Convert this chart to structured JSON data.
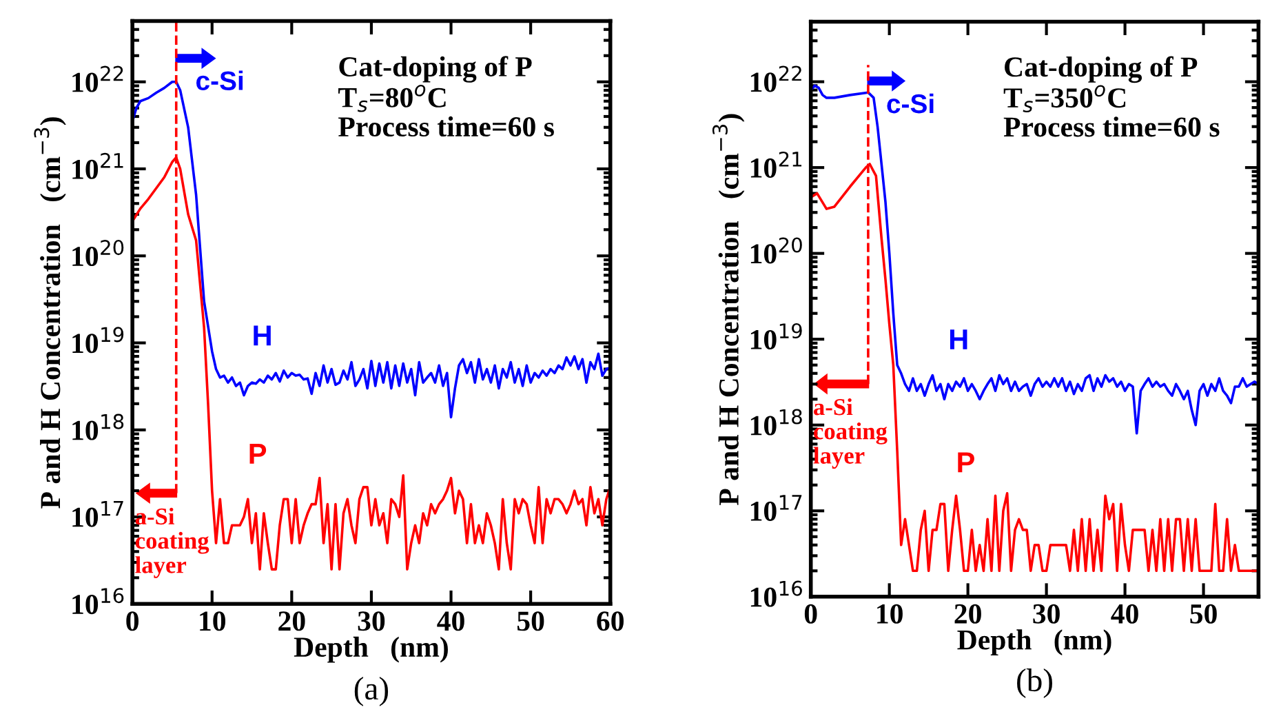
{
  "chart_data": [
    {
      "type": "line",
      "xlabel": "Depth   (nm)",
      "ylabel": "P and H Concentration   (cm$^{−3}$)",
      "log": "y",
      "grid": false,
      "legend": false,
      "marker": "none",
      "line_style": "solid",
      "xlim": [
        0,
        60
      ],
      "xticks": [
        0,
        10,
        20,
        30,
        40,
        50,
        60
      ],
      "ylim": [
        1e+16,
        5e+22
      ],
      "yticks": [
        {
          "value": 1e+16,
          "label": "10$^{16}$"
        },
        {
          "value": 1e+17,
          "label": "10$^{17}$"
        },
        {
          "value": 1e+18,
          "label": "10$^{18}$"
        },
        {
          "value": 1e+19,
          "label": "10$^{19}$"
        },
        {
          "value": 1e+20,
          "label": "10$^{20}$"
        },
        {
          "value": 1e+21,
          "label": "10$^{21}$"
        },
        {
          "value": 1e+22,
          "label": "10$^{22}$"
        }
      ],
      "ref_lines": [
        {
          "axis": "x",
          "value": 5.5,
          "color": "#ff0000",
          "line_style": "dashed"
        }
      ],
      "annotations": [
        "Cat-doping of P\nT$_{s}$=80$^{o}$C\nProcess time=60 s",
        "c-Si",
        "a-Si\ncoating\nlayer",
        "(a)"
      ],
      "series": [
        {
          "name": "H",
          "color": "#0000ff",
          "x": [
            0,
            0.5,
            1,
            2,
            3,
            4,
            5,
            5.5,
            6,
            7,
            8,
            9,
            10,
            10.5,
            11,
            11.5,
            12,
            12.5,
            13,
            13.5,
            14,
            14.5,
            15,
            15.5,
            16,
            16.5,
            17,
            17.5,
            18,
            18.5,
            19,
            19.5,
            20,
            20.5,
            21,
            21.5,
            22,
            22.5,
            23,
            23.5,
            24,
            24.5,
            25,
            25.5,
            26,
            26.5,
            27,
            27.5,
            28,
            28.5,
            29,
            29.5,
            30,
            30.5,
            31,
            31.5,
            32,
            32.5,
            33,
            33.5,
            34,
            34.5,
            35,
            35.5,
            36,
            36.5,
            37,
            37.5,
            38,
            38.5,
            39,
            39.5,
            40,
            40.5,
            41,
            41.5,
            42,
            42.5,
            43,
            43.5,
            44,
            44.5,
            45,
            45.5,
            46,
            46.5,
            47,
            47.5,
            48,
            48.5,
            49,
            49.5,
            50,
            50.5,
            51,
            51.5,
            52,
            52.5,
            53,
            53.5,
            54,
            54.5,
            55,
            55.5,
            56,
            56.5,
            57,
            57.5,
            58,
            58.5,
            59,
            59.5,
            60
          ],
          "values": [
            3.5e+21,
            5e+21,
            6e+21,
            6.5e+21,
            7.5e+21,
            8.5e+21,
            1e+22,
            1e+22,
            8e+21,
            3e+21,
            5e+20,
            3e+19,
            8e+18,
            5e+18,
            4e+18,
            4.2e+18,
            3.5e+18,
            4e+18,
            3.2e+18,
            3.5e+18,
            2.5e+18,
            3.2e+18,
            3.5e+18,
            3.4e+18,
            3.8e+18,
            3.5e+18,
            4.2e+18,
            3.8e+18,
            4.5e+18,
            3.6e+18,
            4.8e+18,
            4e+18,
            4.5e+18,
            4.2e+18,
            4.3e+18,
            3.8e+18,
            3.9e+18,
            2.6e+18,
            4.5e+18,
            3.2e+18,
            5.5e+18,
            3.5e+18,
            5e+18,
            3.3e+18,
            3.5e+18,
            4.8e+18,
            3.8e+18,
            6e+18,
            3.2e+18,
            3.8e+18,
            5e+18,
            3e+18,
            6.2e+18,
            3.2e+18,
            5.8e+18,
            3.5e+18,
            6e+18,
            3e+18,
            5.5e+18,
            3.2e+18,
            5.8e+18,
            3.5e+18,
            5e+18,
            2.5e+18,
            6e+18,
            3.5e+18,
            4e+18,
            4.5e+18,
            3.5e+18,
            5.5e+18,
            3.2e+18,
            4.5e+18,
            1.4e+18,
            3e+18,
            5.5e+18,
            6.5e+18,
            4.5e+18,
            6e+18,
            3.5e+18,
            6.5e+18,
            3.8e+18,
            5e+18,
            3.5e+18,
            5.5e+18,
            3e+18,
            5e+18,
            4e+18,
            6e+18,
            3.5e+18,
            5e+18,
            3.2e+18,
            5.5e+18,
            3.5e+18,
            4.5e+18,
            4e+18,
            4.8e+18,
            4.2e+18,
            5e+18,
            4.5e+18,
            5.5e+18,
            5e+18,
            6.8e+18,
            5.5e+18,
            7e+18,
            5e+18,
            6.5e+18,
            3.5e+18,
            6e+18,
            5e+18,
            7.5e+18,
            4.2e+18,
            5e+18,
            5.2e+18
          ]
        },
        {
          "name": "P",
          "color": "#ff0000",
          "x": [
            0,
            1,
            2,
            3,
            4,
            5,
            5.5,
            6,
            7,
            8,
            9,
            9.5,
            10,
            10.5,
            11,
            11.5,
            12,
            12.5,
            13,
            13.5,
            14,
            14.5,
            15,
            15.5,
            16,
            16.5,
            17,
            17.5,
            18,
            18.5,
            19,
            19.5,
            20,
            20.5,
            21,
            21.5,
            22,
            22.5,
            23,
            23.5,
            24,
            24.5,
            25,
            25.5,
            26,
            26.5,
            27,
            27.5,
            28,
            28.5,
            29,
            29.5,
            30,
            30.5,
            31,
            31.5,
            32,
            32.5,
            33,
            33.5,
            34,
            34.5,
            35,
            35.5,
            36,
            36.5,
            37,
            37.5,
            38,
            38.5,
            39,
            39.5,
            40,
            40.5,
            41,
            41.5,
            42,
            42.5,
            43,
            43.5,
            44,
            44.5,
            45,
            45.5,
            46,
            46.5,
            47,
            47.5,
            48,
            48.5,
            49,
            49.5,
            50,
            50.5,
            51,
            51.5,
            52,
            52.5,
            53,
            53.5,
            54,
            54.5,
            55,
            55.5,
            56,
            56.5,
            57,
            57.5,
            58,
            58.5,
            59,
            59.5,
            60
          ],
          "values": [
            2.5e+20,
            3.5e+20,
            4.5e+20,
            6e+20,
            8e+20,
            1.2e+21,
            1.35e+21,
            1e+21,
            3e+20,
            1.5e+20,
            1.5e+19,
            2e+18,
            2e+17,
            5e+16,
            1.6e+17,
            5e+16,
            5e+16,
            8e+16,
            8e+16,
            8e+16,
            1e+17,
            1.6e+17,
            5e+16,
            1.1e+17,
            2.5e+16,
            1.1e+17,
            5e+16,
            2.5e+16,
            2.5e+16,
            8e+16,
            1.6e+17,
            1.6e+17,
            5e+16,
            1.6e+17,
            5e+16,
            8e+16,
            1.1e+17,
            1.4e+17,
            1.4e+17,
            2.8e+17,
            5e+16,
            1.4e+17,
            2.5e+16,
            1.4e+17,
            2.5e+16,
            1.1e+17,
            1.6e+17,
            8e+16,
            5e+16,
            1.6e+17,
            2.2e+17,
            2.2e+17,
            8e+16,
            1.6e+17,
            8e+16,
            1.1e+17,
            5e+16,
            1.6e+17,
            1.4e+17,
            1e+17,
            3e+17,
            2.5e+16,
            5e+16,
            8e+16,
            5e+16,
            1.1e+17,
            8e+16,
            1.4e+17,
            1.1e+17,
            1.4e+17,
            1.6e+17,
            2e+17,
            2.8e+17,
            1.1e+17,
            2e+17,
            1.6e+17,
            5e+16,
            1.4e+17,
            5e+16,
            8e+16,
            5e+16,
            1.1e+17,
            8e+16,
            5e+16,
            2.5e+16,
            1.6e+17,
            5e+16,
            2.5e+16,
            1.6e+17,
            1.1e+17,
            1.6e+17,
            1.4e+17,
            8e+16,
            5e+16,
            2.2e+17,
            5e+16,
            1.6e+17,
            1.1e+17,
            1.6e+17,
            1.6e+17,
            1.4e+17,
            1.1e+17,
            1.4e+17,
            2e+17,
            1.4e+17,
            1.6e+17,
            8e+16,
            2.2e+17,
            1.1e+17,
            1.6e+17,
            8e+16,
            1.6e+17,
            2.2e+17
          ]
        }
      ]
    },
    {
      "type": "line",
      "xlabel": "Depth   (nm)",
      "ylabel": "P and H Concentration   (cm$^{−3}$)",
      "log": "y",
      "grid": false,
      "legend": false,
      "marker": "none",
      "line_style": "solid",
      "xlim": [
        0,
        57
      ],
      "xticks": [
        0,
        10,
        20,
        30,
        40,
        50
      ],
      "ylim": [
        1e+16,
        5e+22
      ],
      "yticks": [
        {
          "value": 1e+16,
          "label": "10$^{16}$"
        },
        {
          "value": 1e+17,
          "label": "10$^{17}$"
        },
        {
          "value": 1e+18,
          "label": "10$^{18}$"
        },
        {
          "value": 1e+19,
          "label": "10$^{19}$"
        },
        {
          "value": 1e+20,
          "label": "10$^{20}$"
        },
        {
          "value": 1e+21,
          "label": "10$^{21}$"
        },
        {
          "value": 1e+22,
          "label": "10$^{22}$"
        }
      ],
      "ref_lines": [
        {
          "axis": "x",
          "value": 7.3,
          "color": "#ff0000",
          "line_style": "dashed"
        }
      ],
      "annotations": [
        "Cat-doping of P\nT$_{s}$=350$^{o}$C\nProcess time=60 s",
        "c-Si",
        "a-Si\ncoating\nlayer",
        "(b)"
      ],
      "series": [
        {
          "name": "H",
          "color": "#0000ff",
          "x": [
            0,
            0.5,
            1,
            1.5,
            2,
            3,
            5,
            7.3,
            8,
            8.5,
            9,
            9.5,
            10,
            10.5,
            11,
            11.5,
            12,
            12.5,
            13,
            13.5,
            14,
            14.5,
            15,
            15.5,
            16,
            16.5,
            17,
            17.5,
            18,
            18.5,
            19,
            19.5,
            20,
            20.5,
            21,
            21.5,
            22,
            22.5,
            23,
            23.5,
            24,
            24.5,
            25,
            25.5,
            26,
            26.5,
            27,
            27.5,
            28,
            28.5,
            29,
            29.5,
            30,
            30.5,
            31,
            31.5,
            32,
            32.5,
            33,
            33.5,
            34,
            34.5,
            35,
            35.5,
            36,
            36.5,
            37,
            37.5,
            38,
            38.5,
            39,
            39.5,
            40,
            40.5,
            41,
            41.5,
            42,
            42.5,
            43,
            43.5,
            44,
            44.5,
            45,
            45.5,
            46,
            46.5,
            47,
            47.5,
            48,
            48.5,
            49,
            49.5,
            50,
            50.5,
            51,
            51.5,
            52,
            52.5,
            53,
            53.5,
            54,
            54.5,
            55,
            55.5,
            56,
            56.5,
            57
          ],
          "values": [
            8e+21,
            9e+21,
            8.5e+21,
            7e+21,
            6.5e+21,
            6.5e+21,
            7e+21,
            7.5e+21,
            6.5e+21,
            3e+21,
            1.1e+21,
            4e+20,
            1e+20,
            2e+19,
            5e+18,
            4e+18,
            3e+18,
            2.5e+18,
            3.5e+18,
            2.5e+18,
            3e+18,
            2.2e+18,
            3e+18,
            3.8e+18,
            2.5e+18,
            3e+18,
            2e+18,
            3e+18,
            2.5e+18,
            3.2e+18,
            2.8e+18,
            3.5e+18,
            2.5e+18,
            3e+18,
            2.5e+18,
            2e+18,
            2.5e+18,
            3e+18,
            3.5e+18,
            2.5e+18,
            3.8e+18,
            3e+18,
            3.5e+18,
            2.5e+18,
            3.2e+18,
            2.5e+18,
            2.8e+18,
            3e+18,
            2.2e+18,
            3e+18,
            3.5e+18,
            2.8e+18,
            3.2e+18,
            2.8e+18,
            3.5e+18,
            2.8e+18,
            3.5e+18,
            2.5e+18,
            3.2e+18,
            2.3e+18,
            3e+18,
            2.5e+18,
            3.5e+18,
            3.8e+18,
            2.5e+18,
            3.5e+18,
            2.8e+18,
            3.8e+18,
            3.2e+18,
            3.5e+18,
            2.8e+18,
            3.2e+18,
            2.5e+18,
            3e+18,
            2.8e+18,
            8e+17,
            2.5e+18,
            3e+18,
            3.5e+18,
            2.8e+18,
            3.2e+18,
            2.8e+18,
            3e+18,
            2.5e+18,
            2.2e+18,
            3e+18,
            2.5e+18,
            2e+18,
            2.5e+18,
            1.5e+18,
            1e+18,
            2.5e+18,
            3e+18,
            2.2e+18,
            3e+18,
            2.5e+18,
            3.5e+18,
            2.5e+18,
            2.2e+18,
            1.8e+18,
            2.8e+18,
            2.8e+18,
            3.5e+18,
            2.8e+18,
            3e+18,
            3.2e+18,
            3e+18
          ]
        },
        {
          "name": "P",
          "color": "#ff0000",
          "x": [
            0,
            0.8,
            2,
            3,
            5,
            7,
            7.5,
            8.3,
            9,
            9.5,
            10,
            10.5,
            11,
            11.5,
            12,
            12.5,
            13,
            13.5,
            14,
            14.5,
            15,
            15.5,
            16,
            16.5,
            17,
            17.5,
            18,
            18.5,
            19,
            19.5,
            20,
            20.5,
            21,
            21.5,
            22,
            22.5,
            23,
            23.5,
            24,
            24.5,
            25,
            25.5,
            26,
            26.5,
            27,
            27.5,
            28,
            28.5,
            29,
            29.5,
            30,
            30.5,
            31,
            31.5,
            32,
            32.5,
            33,
            33.5,
            34,
            34.5,
            35,
            35.5,
            36,
            36.5,
            37,
            37.5,
            38,
            38.5,
            39,
            39.5,
            40,
            40.5,
            41,
            41.5,
            42,
            42.5,
            43,
            43.5,
            44,
            44.5,
            45,
            45.5,
            46,
            46.5,
            47,
            47.5,
            48,
            48.5,
            49,
            49.5,
            50,
            50.5,
            51,
            51.5,
            52,
            52.5,
            53,
            53.5,
            54,
            54.5,
            55,
            55.5,
            56,
            56.5,
            57
          ],
          "values": [
            4.5e+20,
            5e+20,
            3.3e+20,
            3.5e+20,
            6e+20,
            1e+21,
            1.1e+21,
            8e+20,
            1.5e+20,
            5e+19,
            1.5e+19,
            5e+18,
            5e+17,
            4e+16,
            8e+16,
            4e+16,
            2e+16,
            2e+16,
            6e+16,
            1e+17,
            2e+16,
            6e+16,
            6e+16,
            1.2e+17,
            1.2e+17,
            2e+16,
            6e+16,
            1.5e+17,
            6e+16,
            2e+16,
            2e+16,
            6e+16,
            2e+16,
            4e+16,
            2e+16,
            8e+16,
            2e+16,
            1.5e+17,
            2e+16,
            1e+17,
            1.6e+17,
            2e+16,
            6e+16,
            8e+16,
            6e+16,
            6e+16,
            2e+16,
            4e+16,
            4e+16,
            2e+16,
            2e+16,
            4e+16,
            4e+16,
            4e+16,
            4e+16,
            4e+16,
            2e+16,
            6e+16,
            2e+16,
            8e+16,
            2e+16,
            8e+16,
            2e+16,
            6e+16,
            2e+16,
            1.5e+17,
            8e+16,
            1.2e+17,
            2e+16,
            1.2e+17,
            4e+16,
            2e+16,
            6e+16,
            6e+16,
            6e+16,
            6e+16,
            2e+16,
            6e+16,
            2e+16,
            8e+16,
            2e+16,
            8e+16,
            2e+16,
            8e+16,
            8e+16,
            2e+16,
            8e+16,
            2e+16,
            8e+16,
            2e+16,
            2e+16,
            2e+16,
            2e+16,
            1.2e+17,
            2e+16,
            2e+16,
            8e+16,
            2e+16,
            4e+16,
            2e+16,
            2e+16,
            2e+16,
            2e+16,
            2e+16,
            2e+16
          ]
        }
      ]
    }
  ]
}
